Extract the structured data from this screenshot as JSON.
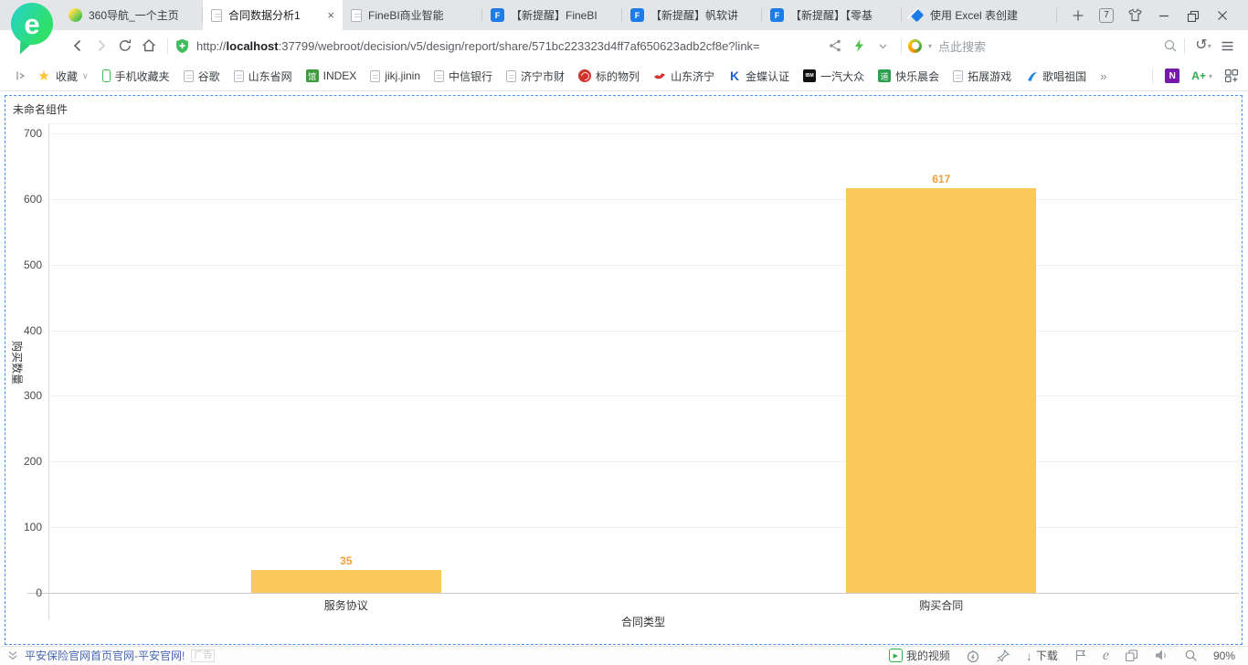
{
  "browser": {
    "tabs": [
      {
        "label": "360导航_一个主页"
      },
      {
        "label": "合同数据分析1",
        "close": "×"
      },
      {
        "label": "FineBI商业智能"
      },
      {
        "label": "【新提醒】FineBI"
      },
      {
        "label": "【新提醒】帆软讲"
      },
      {
        "label": "【新提醒】【零基"
      },
      {
        "label": "使用 Excel 表创建"
      }
    ],
    "tab_count": "7"
  },
  "toolbar": {
    "url_scheme": "http://",
    "url_host": "localhost",
    "url_rest": ":37799/webroot/decision/v5/design/report/share/571bc223323d4ff7af650623adb2cf8e?link=",
    "search_placeholder": "点此搜索"
  },
  "bookmarks": {
    "favorites_label": "收藏",
    "items": [
      {
        "label": "手机收藏夹"
      },
      {
        "label": "谷歌"
      },
      {
        "label": "山东省网"
      },
      {
        "label": "INDEX"
      },
      {
        "label": "jikj.jinin"
      },
      {
        "label": "中信银行"
      },
      {
        "label": "济宁市财"
      },
      {
        "label": "标的物列"
      },
      {
        "label": "山东济宁"
      },
      {
        "label": "金蝶认证"
      },
      {
        "label": "一汽大众"
      },
      {
        "label": "快乐晨会"
      },
      {
        "label": "拓展游戏"
      },
      {
        "label": "歌唱祖国"
      }
    ],
    "overflow": "»"
  },
  "page": {
    "component_title": "未命名组件"
  },
  "chart_data": {
    "type": "bar",
    "categories": [
      "服务协议",
      "购买合同"
    ],
    "values": [
      35,
      617
    ],
    "title": "未命名组件",
    "xlabel": "合同类型",
    "ylabel": "购买数量",
    "ylim": [
      0,
      700
    ],
    "yticks": [
      0,
      100,
      200,
      300,
      400,
      500,
      600,
      700
    ],
    "bar_color": "#FBC85C",
    "value_label_color": "#EFA03E",
    "grid": true,
    "legend": "none"
  },
  "statusbar": {
    "ad_link": "平安保险官网首页官网-平安官网!",
    "ad_badge": "广告",
    "video_label": "我的视频",
    "download_label": "下载",
    "zoom_level": "90%"
  }
}
